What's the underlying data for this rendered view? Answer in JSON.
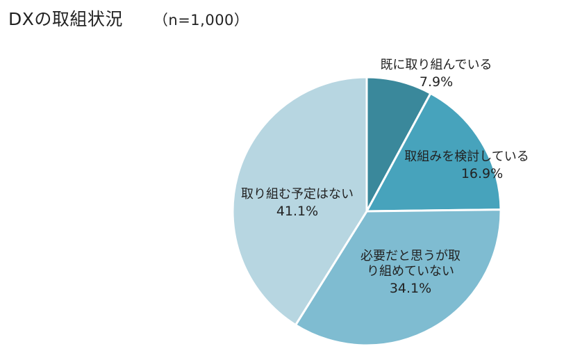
{
  "chart_data": {
    "type": "pie",
    "title": "DXの取組状況",
    "subtitle": "（n=1,000）",
    "slices": [
      {
        "label_lines": [
          "既に取り組んでいる"
        ],
        "value": 7.9,
        "value_label": "7.9%",
        "color": "#3a889b"
      },
      {
        "label_lines": [
          "取組みを検討している"
        ],
        "value": 16.9,
        "value_label": "16.9%",
        "color": "#47a3bc"
      },
      {
        "label_lines": [
          "必要だと思うが取",
          "り組めていない"
        ],
        "value": 34.1,
        "value_label": "34.1%",
        "color": "#7fbcd1"
      },
      {
        "label_lines": [
          "取り組む予定はない"
        ],
        "value": 41.1,
        "value_label": "41.1%",
        "color": "#b7d6e1"
      }
    ],
    "legend": "none"
  }
}
